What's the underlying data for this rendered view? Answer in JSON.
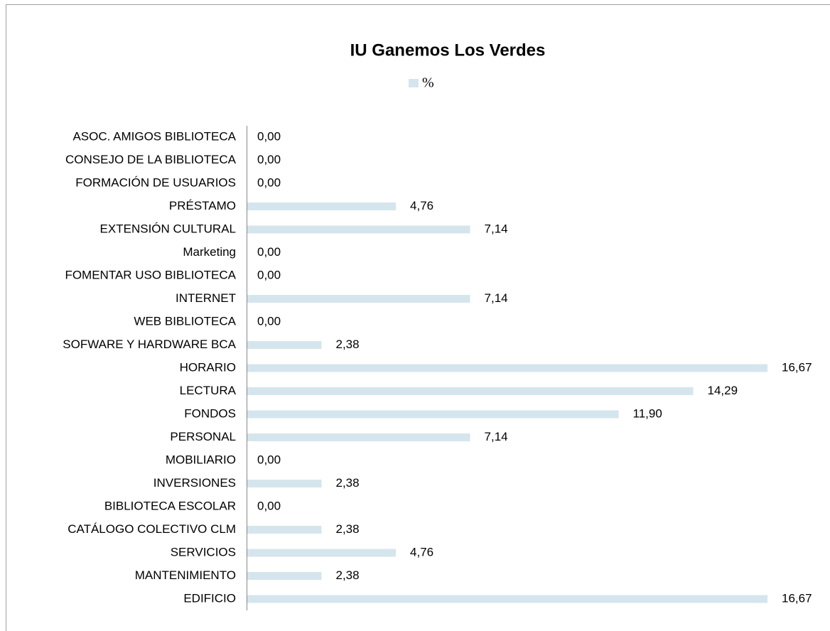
{
  "chart_data": {
    "type": "hbar",
    "title": "IU Ganemos Los Verdes",
    "categories": [
      "ASOC. AMIGOS BIBLIOTECA",
      "CONSEJO DE LA BIBLIOTECA",
      "FORMACIÓN DE USUARIOS",
      "PRÉSTAMO",
      "EXTENSIÓN CULTURAL",
      "Marketing",
      "FOMENTAR USO BIBLIOTECA",
      "INTERNET",
      "WEB BIBLIOTECA",
      "SOFWARE Y HARDWARE BCA",
      "HORARIO",
      "LECTURA",
      "FONDOS",
      "PERSONAL",
      "MOBILIARIO",
      "INVERSIONES",
      "BIBLIOTECA ESCOLAR",
      "CATÁLOGO COLECTIVO CLM",
      "SERVICIOS",
      "MANTENIMIENTO",
      "EDIFICIO"
    ],
    "series": [
      {
        "name": "%",
        "color": "#d5e5ed",
        "values": [
          0,
          0,
          0,
          4.76,
          7.14,
          0,
          0,
          7.14,
          0,
          2.38,
          16.67,
          14.29,
          11.9,
          7.14,
          0,
          2.38,
          0,
          2.38,
          4.76,
          2.38,
          16.67
        ],
        "value_labels": [
          "0,00",
          "0,00",
          "0,00",
          "4,76",
          "7,14",
          "0,00",
          "0,00",
          "7,14",
          "0,00",
          "2,38",
          "16,67",
          "14,29",
          "11,90",
          "7,14",
          "0,00",
          "2,38",
          "0,00",
          "2,38",
          "4,76",
          "2,38",
          "16,67"
        ]
      }
    ],
    "legend": "top"
  }
}
